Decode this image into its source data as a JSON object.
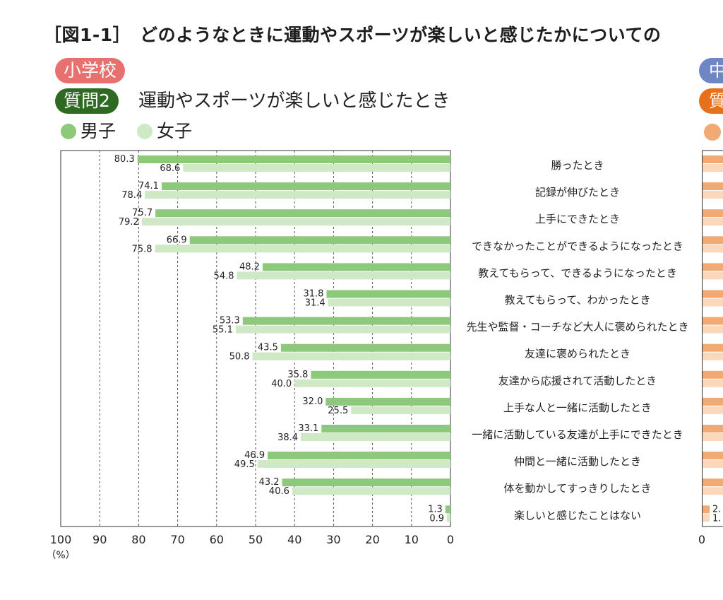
{
  "title": "［図1-1］　どのようなときに運動やスポーツが楽しいと感じたかについての",
  "school_label": "小学校",
  "question_tag": "質問2",
  "question_text": "運動やスポーツが楽しいと感じたとき",
  "right_panel": {
    "school_label_partial": "中",
    "question_tag_partial": "質",
    "axis_zero": "0",
    "first_visible": [
      "2.",
      "1."
    ]
  },
  "colors": {
    "boys": "#8cc97a",
    "girls": "#cfe8c6",
    "school_pill": "#e8706e",
    "question_pill": "#2f6a23",
    "right_boys": "#f2aa74",
    "right_girls": "#fbd8bc"
  },
  "chart_data": {
    "type": "bar",
    "orientation": "horizontal-reversed",
    "xlim": [
      0,
      100
    ],
    "x_ticks": [
      100,
      90,
      80,
      70,
      60,
      50,
      40,
      30,
      20,
      10,
      0
    ],
    "x_unit": "（%）",
    "grid": "dashed vertical",
    "legend_position": "top-left",
    "categories": [
      "勝ったとき",
      "記録が伸びたとき",
      "上手にできたとき",
      "できなかったことができるようになったとき",
      "教えてもらって、できるようになったとき",
      "教えてもらって、わかったとき",
      "先生や監督・コーチなど大人に褒められたとき",
      "友達に褒められたとき",
      "友達から応援されて活動したとき",
      "上手な人と一緒に活動したとき",
      "一緒に活動している友達が上手にできたとき",
      "仲間と一緒に活動したとき",
      "体を動かしてすっきりしたとき",
      "楽しいと感じたことはない"
    ],
    "series": [
      {
        "name": "男子",
        "values": [
          80.3,
          74.1,
          75.7,
          66.9,
          48.2,
          31.8,
          53.3,
          43.5,
          35.8,
          32.0,
          33.1,
          46.9,
          43.2,
          1.3
        ]
      },
      {
        "name": "女子",
        "values": [
          68.6,
          78.4,
          79.2,
          75.8,
          54.8,
          31.4,
          55.1,
          50.8,
          40.0,
          25.5,
          38.4,
          49.5,
          40.6,
          0.9
        ]
      }
    ]
  }
}
